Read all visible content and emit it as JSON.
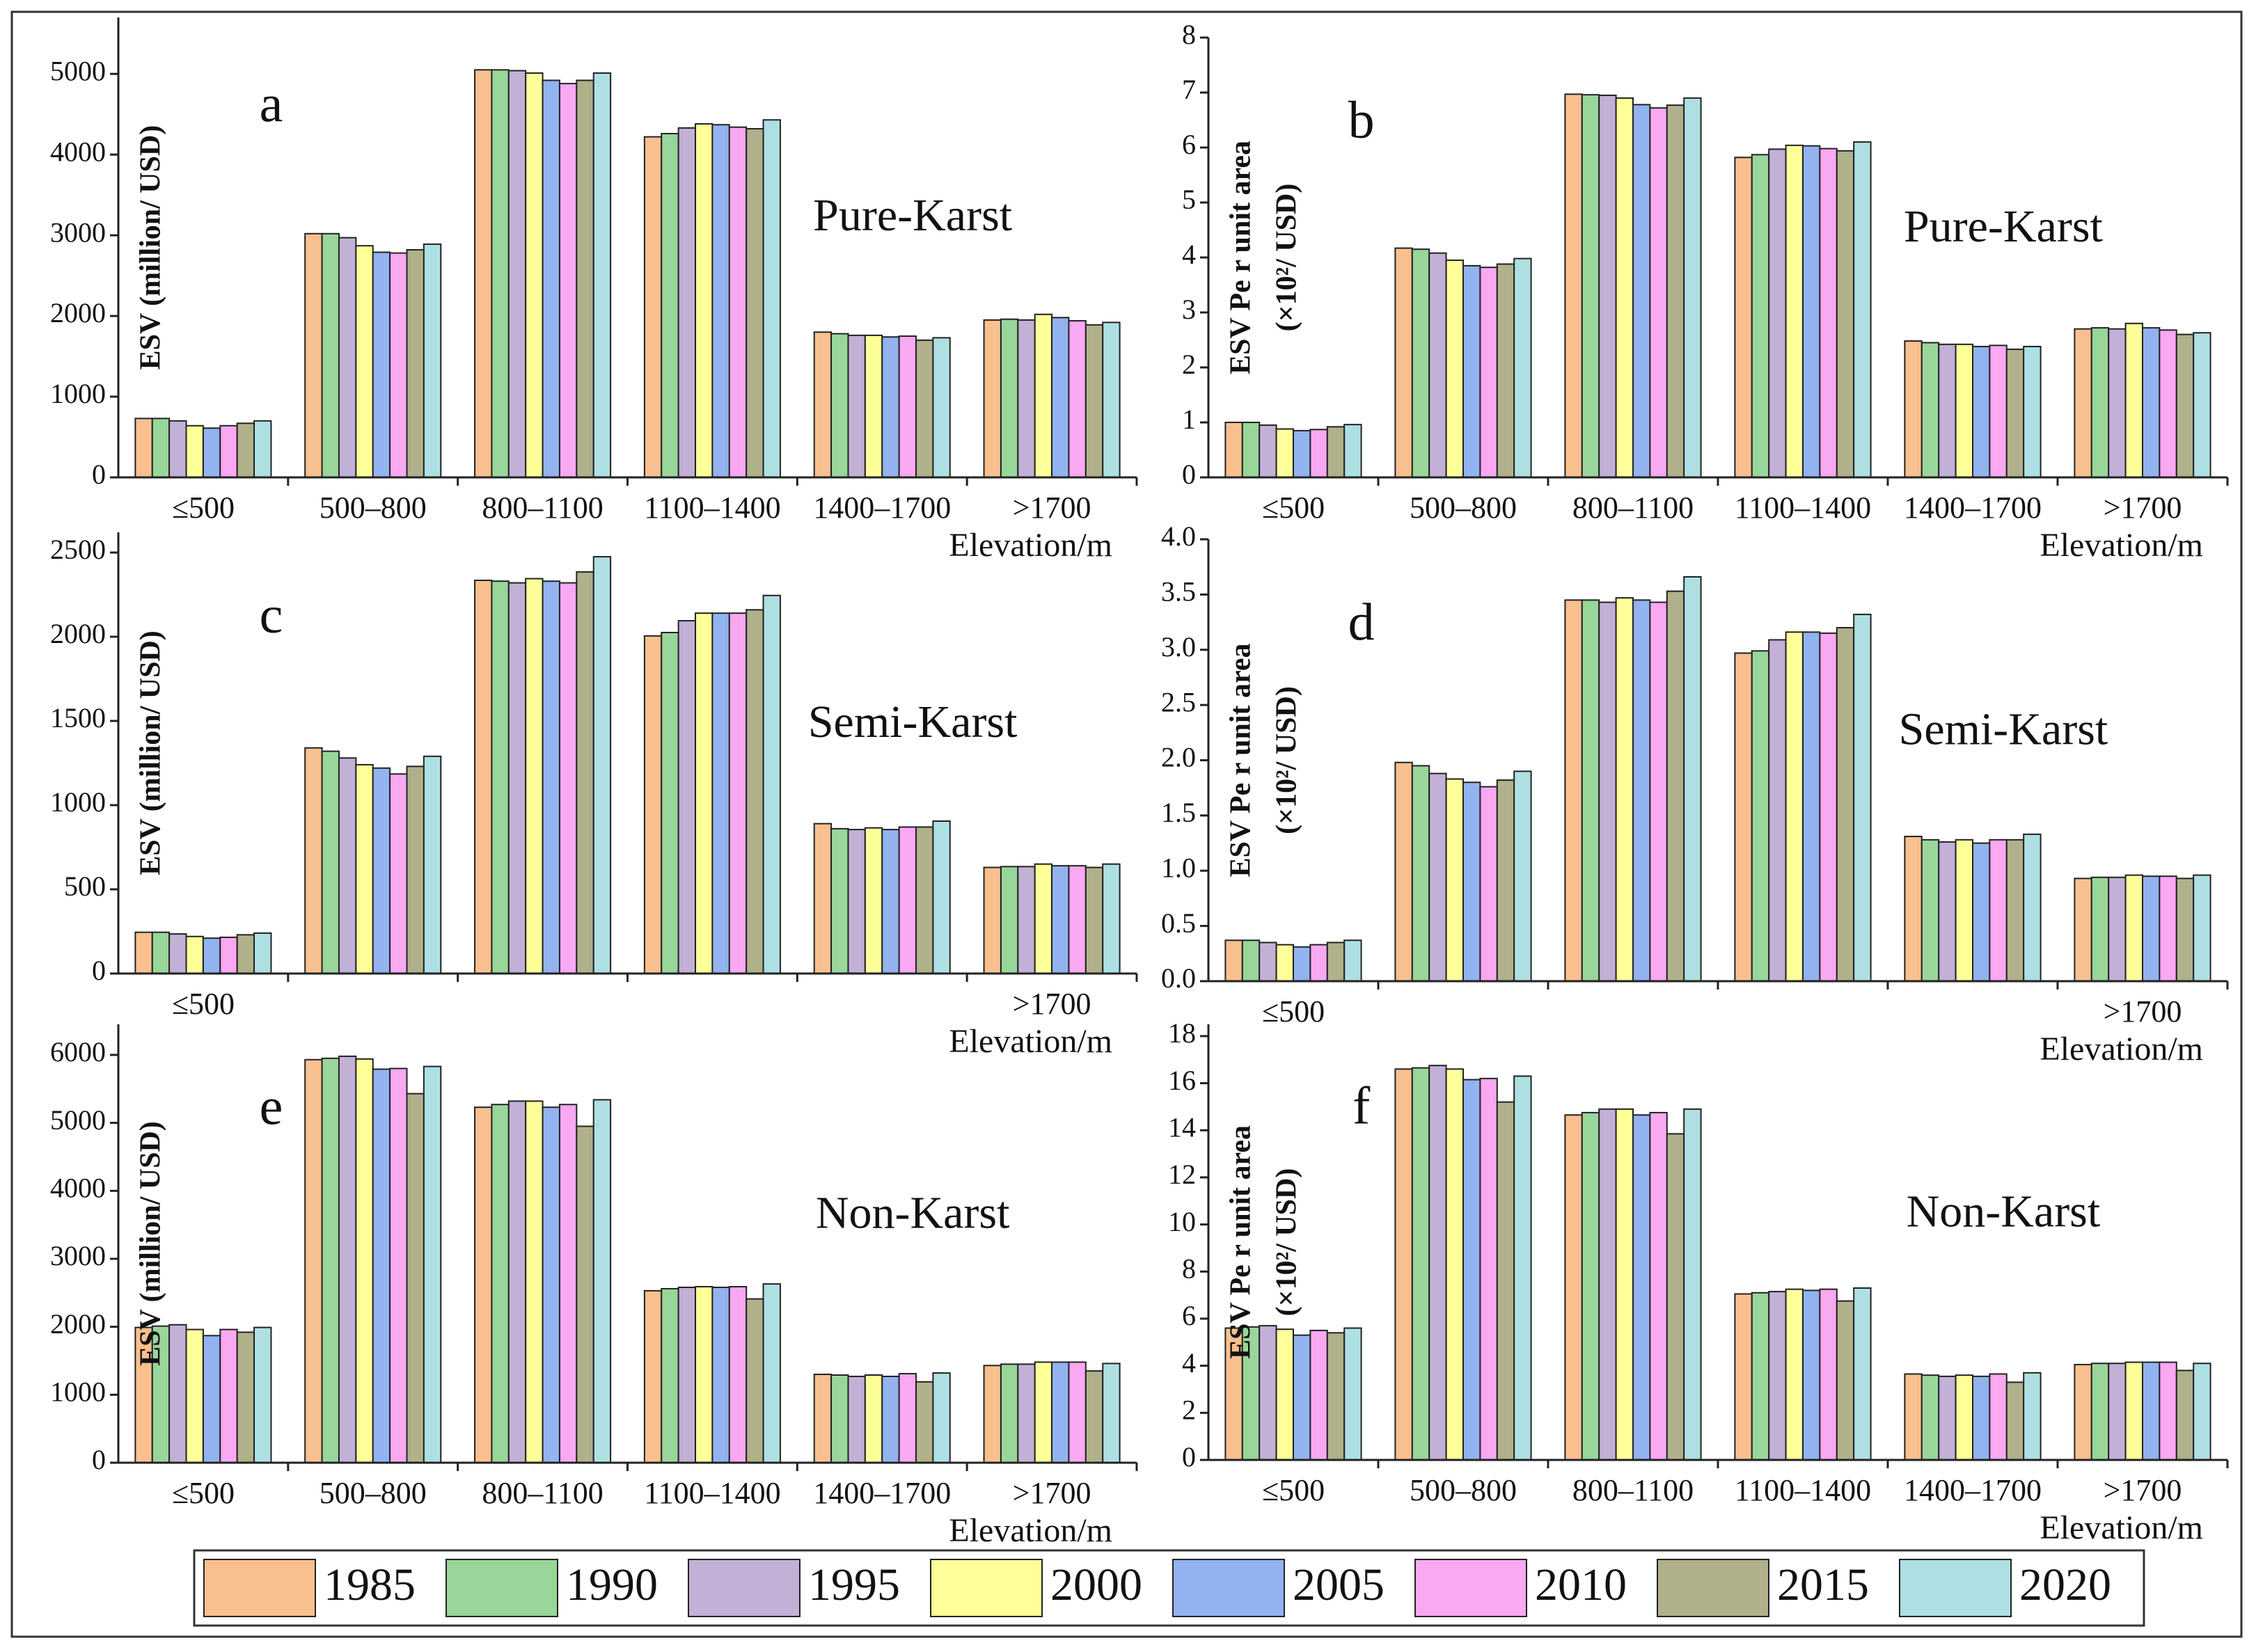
{
  "legend": [
    {
      "name": "1985",
      "color": "#f9c08f"
    },
    {
      "name": "1990",
      "color": "#98d69a"
    },
    {
      "name": "1995",
      "color": "#c2b0d6"
    },
    {
      "name": "2000",
      "color": "#ffff99"
    },
    {
      "name": "2005",
      "color": "#92b3ef"
    },
    {
      "name": "2010",
      "color": "#f9a8f2"
    },
    {
      "name": "2015",
      "color": "#b0b08a"
    },
    {
      "name": "2020",
      "color": "#aee0e3"
    }
  ],
  "chart_data": [
    {
      "type": "bar",
      "panel": "a",
      "region": "Pure-Karst",
      "y_label": [
        "ESV (million/ USD)"
      ],
      "x_label": "Elevation/m",
      "categories": [
        "≤500",
        "500–800",
        "800–1100",
        "1100–1400",
        "1400–1700",
        ">1700"
      ],
      "ylim": [
        0,
        5700
      ],
      "yticks": [
        0,
        1000,
        2000,
        3000,
        4000,
        5000
      ],
      "series": [
        {
          "values": [
            730,
            3020,
            5050,
            4220,
            1800,
            1950
          ]
        },
        {
          "values": [
            730,
            3020,
            5050,
            4260,
            1780,
            1960
          ]
        },
        {
          "values": [
            700,
            2970,
            5040,
            4330,
            1760,
            1950
          ]
        },
        {
          "values": [
            640,
            2870,
            5010,
            4380,
            1760,
            2020
          ]
        },
        {
          "values": [
            610,
            2790,
            4920,
            4370,
            1740,
            1980
          ]
        },
        {
          "values": [
            640,
            2780,
            4880,
            4340,
            1750,
            1940
          ]
        },
        {
          "values": [
            670,
            2820,
            4920,
            4320,
            1700,
            1890
          ]
        },
        {
          "values": [
            700,
            2890,
            5010,
            4430,
            1730,
            1920
          ]
        }
      ]
    },
    {
      "type": "bar",
      "panel": "b",
      "region": "Pure-Karst",
      "y_label": [
        "ESV Pe r unit area",
        "(×10²/ USD)"
      ],
      "x_label": "Elevation/m",
      "categories": [
        "≤500",
        "500–800",
        "800–1100",
        "1100–1400",
        "1400–1700",
        ">1700"
      ],
      "ylim": [
        0,
        8
      ],
      "yticks": [
        0,
        1,
        2,
        3,
        4,
        5,
        6,
        7,
        8
      ],
      "series": [
        {
          "values": [
            1.0,
            4.17,
            6.97,
            5.82,
            2.48,
            2.7
          ]
        },
        {
          "values": [
            1.0,
            4.15,
            6.96,
            5.87,
            2.45,
            2.72
          ]
        },
        {
          "values": [
            0.95,
            4.08,
            6.95,
            5.97,
            2.42,
            2.7
          ]
        },
        {
          "values": [
            0.88,
            3.95,
            6.9,
            6.04,
            2.42,
            2.8
          ]
        },
        {
          "values": [
            0.85,
            3.85,
            6.78,
            6.03,
            2.38,
            2.72
          ]
        },
        {
          "values": [
            0.87,
            3.82,
            6.72,
            5.98,
            2.4,
            2.68
          ]
        },
        {
          "values": [
            0.92,
            3.88,
            6.77,
            5.94,
            2.33,
            2.6
          ]
        },
        {
          "values": [
            0.96,
            3.98,
            6.9,
            6.1,
            2.38,
            2.63
          ]
        }
      ]
    },
    {
      "type": "bar",
      "panel": "c",
      "region": "Semi-Karst",
      "y_label": [
        "ESV (million/ USD)"
      ],
      "x_label": "Elevation/m",
      "categories": [
        "≤500",
        null,
        null,
        null,
        null,
        ">1700"
      ],
      "ylim": [
        0,
        2620
      ],
      "yticks": [
        0,
        500,
        1000,
        1500,
        2000,
        2500
      ],
      "series": [
        {
          "values": [
            245,
            1340,
            2335,
            2005,
            890,
            630
          ]
        },
        {
          "values": [
            245,
            1320,
            2330,
            2025,
            860,
            635
          ]
        },
        {
          "values": [
            235,
            1280,
            2320,
            2095,
            855,
            635
          ]
        },
        {
          "values": [
            220,
            1240,
            2345,
            2140,
            865,
            650
          ]
        },
        {
          "values": [
            210,
            1220,
            2330,
            2140,
            855,
            640
          ]
        },
        {
          "values": [
            215,
            1185,
            2320,
            2140,
            870,
            640
          ]
        },
        {
          "values": [
            230,
            1230,
            2385,
            2160,
            870,
            630
          ]
        },
        {
          "values": [
            240,
            1290,
            2475,
            2245,
            905,
            650
          ]
        }
      ]
    },
    {
      "type": "bar",
      "panel": "d",
      "region": "Semi-Karst",
      "y_label": [
        "ESV Pe r unit area",
        "(×10²/ USD)"
      ],
      "x_label": "Elevation/m",
      "categories": [
        "≤500",
        null,
        null,
        null,
        null,
        ">1700"
      ],
      "ylim": [
        0,
        4
      ],
      "yticks": [
        {
          "value": 0,
          "label": "0.0"
        },
        0.5,
        {
          "value": 1,
          "label": "1.0"
        },
        1.5,
        {
          "value": 2,
          "label": "2.0"
        },
        2.5,
        {
          "value": 3,
          "label": "3.0"
        },
        3.5,
        {
          "value": 4,
          "label": "4.0"
        }
      ],
      "series": [
        {
          "values": [
            0.37,
            1.98,
            3.45,
            2.97,
            1.31,
            0.93
          ]
        },
        {
          "values": [
            0.37,
            1.95,
            3.45,
            2.99,
            1.28,
            0.94
          ]
        },
        {
          "values": [
            0.35,
            1.88,
            3.43,
            3.09,
            1.26,
            0.94
          ]
        },
        {
          "values": [
            0.33,
            1.83,
            3.47,
            3.16,
            1.28,
            0.96
          ]
        },
        {
          "values": [
            0.31,
            1.8,
            3.45,
            3.16,
            1.25,
            0.95
          ]
        },
        {
          "values": [
            0.33,
            1.76,
            3.43,
            3.15,
            1.28,
            0.95
          ]
        },
        {
          "values": [
            0.35,
            1.82,
            3.53,
            3.2,
            1.28,
            0.93
          ]
        },
        {
          "values": [
            0.37,
            1.9,
            3.66,
            3.32,
            1.33,
            0.96
          ]
        }
      ]
    },
    {
      "type": "bar",
      "panel": "e",
      "region": "Non-Karst",
      "y_label": [
        "ESV (million/ USD)"
      ],
      "x_label": "Elevation/m",
      "categories": [
        "≤500",
        "500–800",
        "800–1100",
        "1100–1400",
        "1400–1700",
        ">1700"
      ],
      "ylim": [
        0,
        6450
      ],
      "yticks": [
        0,
        1000,
        2000,
        3000,
        4000,
        5000,
        6000
      ],
      "series": [
        {
          "values": [
            1990,
            5930,
            5230,
            2530,
            1300,
            1430
          ]
        },
        {
          "values": [
            2010,
            5950,
            5270,
            2560,
            1290,
            1450
          ]
        },
        {
          "values": [
            2030,
            5980,
            5320,
            2580,
            1270,
            1450
          ]
        },
        {
          "values": [
            1960,
            5940,
            5320,
            2590,
            1290,
            1480
          ]
        },
        {
          "values": [
            1870,
            5790,
            5230,
            2580,
            1270,
            1480
          ]
        },
        {
          "values": [
            1960,
            5800,
            5270,
            2590,
            1310,
            1480
          ]
        },
        {
          "values": [
            1920,
            5430,
            4950,
            2410,
            1190,
            1350
          ]
        },
        {
          "values": [
            1990,
            5830,
            5340,
            2630,
            1320,
            1460
          ]
        }
      ]
    },
    {
      "type": "bar",
      "panel": "f",
      "region": "Non-Karst",
      "y_label": [
        "ESV Pe r unit area",
        "(×10²/ USD)"
      ],
      "x_label": "Elevation/m",
      "categories": [
        "≤500",
        "500–800",
        "800–1100",
        "1100–1400",
        "1400–1700",
        ">1700"
      ],
      "ylim": [
        0,
        18.5
      ],
      "yticks": [
        0,
        2,
        4,
        6,
        8,
        10,
        12,
        14,
        16,
        18
      ],
      "series": [
        {
          "values": [
            5.6,
            16.6,
            14.65,
            7.05,
            3.65,
            4.05
          ]
        },
        {
          "values": [
            5.65,
            16.65,
            14.75,
            7.1,
            3.6,
            4.1
          ]
        },
        {
          "values": [
            5.7,
            16.75,
            14.9,
            7.15,
            3.55,
            4.1
          ]
        },
        {
          "values": [
            5.55,
            16.6,
            14.9,
            7.25,
            3.6,
            4.15
          ]
        },
        {
          "values": [
            5.3,
            16.15,
            14.65,
            7.2,
            3.55,
            4.15
          ]
        },
        {
          "values": [
            5.5,
            16.2,
            14.75,
            7.25,
            3.65,
            4.15
          ]
        },
        {
          "values": [
            5.4,
            15.2,
            13.85,
            6.75,
            3.3,
            3.8
          ]
        },
        {
          "values": [
            5.6,
            16.3,
            14.9,
            7.3,
            3.7,
            4.1
          ]
        }
      ]
    }
  ]
}
